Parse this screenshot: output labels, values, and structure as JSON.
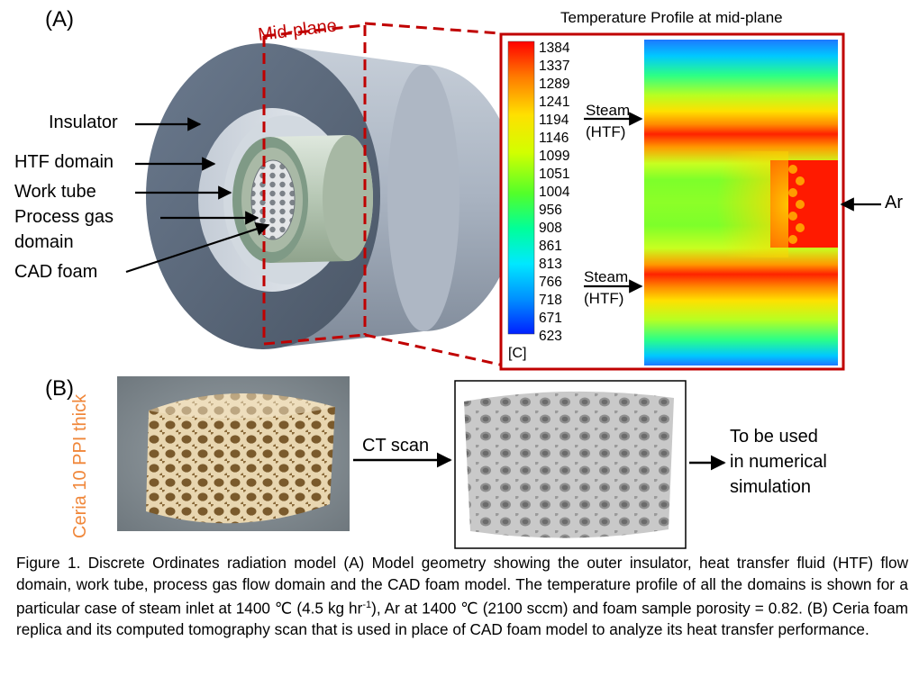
{
  "panel_a": {
    "label": "(A)",
    "midplane_label": "Mid-plane",
    "parts": [
      "Insulator",
      "HTF domain",
      "Work tube",
      "Process gas",
      "domain",
      "CAD foam"
    ],
    "profile_title": "Temperature Profile at mid-plane",
    "colorbar": {
      "ticks": [
        "1384",
        "1337",
        "1289",
        "1241",
        "1194",
        "1146",
        "1099",
        "1051",
        "1004",
        "956",
        "908",
        "861",
        "813",
        "766",
        "718",
        "671",
        "623"
      ],
      "unit": "[C]"
    },
    "inlets": {
      "steam_top": [
        "Steam",
        "(HTF)"
      ],
      "steam_bottom": [
        "Steam",
        "(HTF)"
      ],
      "ar": "Ar"
    },
    "colors": {
      "dashed_frame": "#c00000",
      "hot": "#ff2a00",
      "cold": "#1a3cff"
    }
  },
  "panel_b": {
    "label": "(B)",
    "sample_label": "Ceria 10 PPI thick",
    "step_label": "CT scan",
    "result_label": [
      "To be used",
      "in numerical",
      "simulation"
    ]
  },
  "caption": {
    "line1": "Figure 1. Discrete Ordinates radiation model (A) Model geometry showing the outer insulator, heat transfer fluid (HTF) flow domain, work tube, process gas flow domain and the CAD foam model. The temperature profile of all the domains is shown for a particular case of steam inlet at 1400 ℃ (4.5 kg hr",
    "sup": "-1",
    "line2": "), Ar at 1400 ℃ (2100 sccm) and foam sample porosity = 0.82. (B) Ceria foam replica and its computed tomography scan that is used in place of CAD foam model to analyze its heat transfer performance."
  }
}
